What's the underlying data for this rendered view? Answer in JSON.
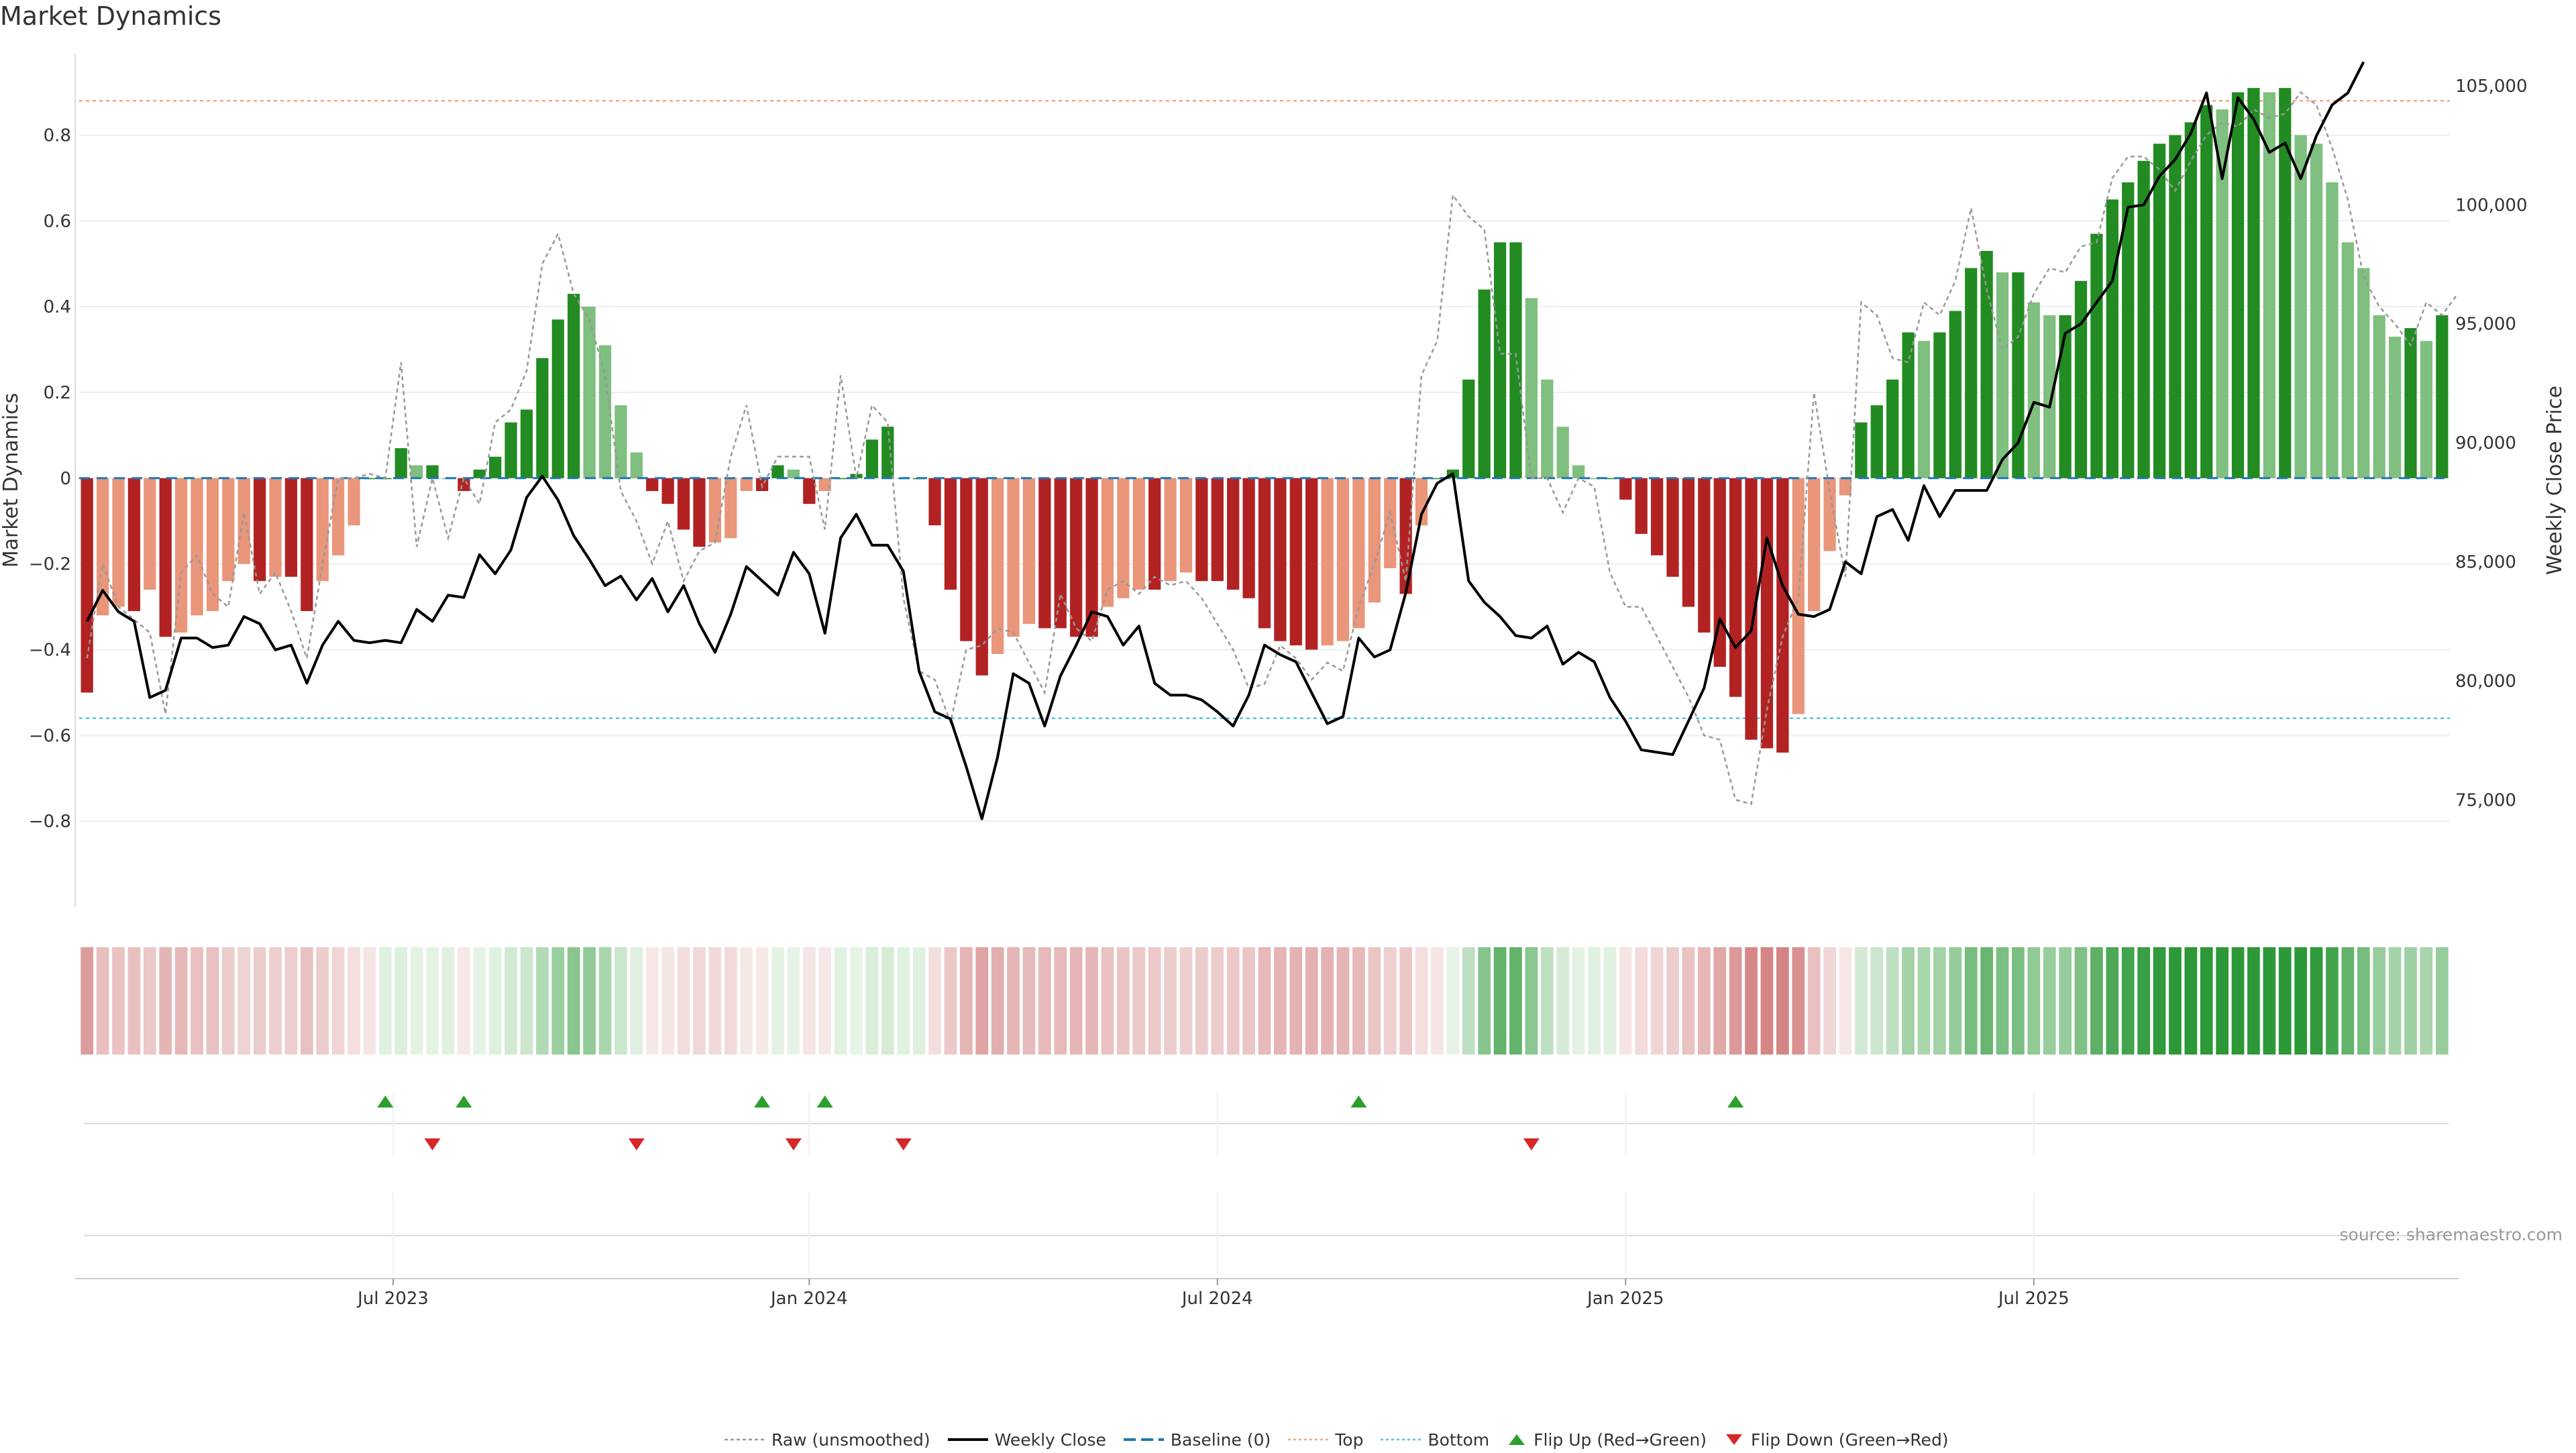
{
  "title": "Market Dynamics",
  "source_note": "source: sharemaestro.com",
  "colors": {
    "strong_green": "#228B22",
    "light_green": "#7FBF7F",
    "strong_red": "#B22222",
    "light_red": "#E9967A",
    "close_line": "#000000",
    "raw_line": "#999999",
    "baseline": "#1f77b4",
    "top": "#f4a582",
    "bottom": "#5bc0de",
    "flip_up": "#2ca02c",
    "flip_down": "#d62728"
  },
  "legend": {
    "raw": "Raw (unsmoothed)",
    "close": "Weekly Close",
    "baseline": "Baseline (0)",
    "top": "Top",
    "bottom": "Bottom",
    "flip_up": "Flip Up (Red→Green)",
    "flip_down": "Flip Down (Green→Red)"
  },
  "chart_data": {
    "type": "bar",
    "title": "Market Dynamics",
    "ylabel": "Market Dynamics",
    "y2label": "Weekly Close Price",
    "ylim": [
      -1.0,
      0.99
    ],
    "y2lim": [
      70500,
      106350
    ],
    "yticks": [
      0.8,
      0.6,
      0.4,
      0.2,
      0,
      -0.2,
      -0.4,
      -0.6,
      -0.8
    ],
    "ytick_labels": [
      "0.8",
      "0.6",
      "0.4",
      "0.2",
      "0",
      "−0.2",
      "−0.4",
      "−0.6",
      "−0.8"
    ],
    "y2ticks": [
      105000,
      100000,
      95000,
      90000,
      85000,
      80000,
      75000
    ],
    "y2tick_labels": [
      "105,000",
      "100,000",
      "95,000",
      "90,000",
      "85,000",
      "80,000",
      "75,000"
    ],
    "xtick_weeks": [
      20,
      46.5,
      72.5,
      98.5,
      124.5
    ],
    "xtick_labels": [
      "Jul 2023",
      "Jan 2024",
      "Jul 2024",
      "Jan 2025",
      "Jul 2025"
    ],
    "top_level": 0.88,
    "bottom_level": -0.56,
    "baseline": 0,
    "market_dynamics": [
      -0.5,
      -0.32,
      -0.3,
      -0.31,
      -0.26,
      -0.37,
      -0.36,
      -0.32,
      -0.31,
      -0.24,
      -0.2,
      -0.24,
      -0.23,
      -0.23,
      -0.31,
      -0.24,
      -0.18,
      -0.11,
      0,
      0,
      0.07,
      0.03,
      0.03,
      0,
      -0.03,
      0.02,
      0.05,
      0.13,
      0.16,
      0.28,
      0.37,
      0.43,
      0.4,
      0.31,
      0.17,
      0.06,
      -0.03,
      -0.06,
      -0.12,
      -0.16,
      -0.15,
      -0.14,
      -0.03,
      -0.03,
      0.03,
      0.02,
      -0.06,
      -0.03,
      0,
      0.01,
      0.09,
      0.12,
      0,
      0,
      -0.11,
      -0.26,
      -0.38,
      -0.46,
      -0.41,
      -0.37,
      -0.34,
      -0.35,
      -0.35,
      -0.37,
      -0.37,
      -0.3,
      -0.28,
      -0.26,
      -0.26,
      -0.24,
      -0.22,
      -0.24,
      -0.24,
      -0.26,
      -0.28,
      -0.35,
      -0.38,
      -0.39,
      -0.4,
      -0.39,
      -0.38,
      -0.35,
      -0.29,
      -0.21,
      -0.27,
      -0.11,
      0,
      0.02,
      0.23,
      0.44,
      0.55,
      0.55,
      0.42,
      0.23,
      0.12,
      0.03,
      0,
      0,
      -0.05,
      -0.13,
      -0.18,
      -0.23,
      -0.3,
      -0.36,
      -0.44,
      -0.51,
      -0.61,
      -0.63,
      -0.64,
      -0.55,
      -0.31,
      -0.17,
      -0.04,
      0.13,
      0.17,
      0.23,
      0.34,
      0.32,
      0.34,
      0.39,
      0.49,
      0.53,
      0.48,
      0.48,
      0.41,
      0.38,
      0.38,
      0.46,
      0.57,
      0.65,
      0.69,
      0.74,
      0.78,
      0.8,
      0.83,
      0.87,
      0.86,
      0.9,
      0.91,
      0.9,
      0.91,
      0.8,
      0.78,
      0.69,
      0.55,
      0.49,
      0.38,
      0.33,
      0.35,
      0.32,
      0.38
    ],
    "raw_unsmoothed": [
      -0.42,
      -0.2,
      -0.3,
      -0.33,
      -0.36,
      -0.55,
      -0.22,
      -0.18,
      -0.27,
      -0.3,
      -0.08,
      -0.27,
      -0.22,
      -0.31,
      -0.42,
      -0.2,
      0,
      0,
      0.01,
      0,
      0.27,
      -0.16,
      0,
      -0.14,
      0,
      -0.06,
      0.13,
      0.16,
      0.25,
      0.5,
      0.57,
      0.43,
      0.37,
      0.24,
      -0.03,
      -0.1,
      -0.2,
      -0.1,
      -0.24,
      -0.17,
      -0.15,
      0.05,
      0.17,
      -0.02,
      0.05,
      0.05,
      0.05,
      -0.12,
      0.24,
      0,
      0.17,
      0.13,
      -0.28,
      -0.45,
      -0.47,
      -0.57,
      -0.4,
      -0.39,
      -0.35,
      -0.36,
      -0.43,
      -0.5,
      -0.27,
      -0.35,
      -0.38,
      -0.26,
      -0.24,
      -0.27,
      -0.23,
      -0.25,
      -0.24,
      -0.28,
      -0.34,
      -0.4,
      -0.49,
      -0.48,
      -0.39,
      -0.42,
      -0.47,
      -0.43,
      -0.45,
      -0.3,
      -0.2,
      -0.08,
      -0.24,
      0.24,
      0.32,
      0.66,
      0.61,
      0.58,
      0.29,
      0.29,
      0,
      0,
      -0.08,
      0,
      -0.02,
      -0.22,
      -0.3,
      -0.3,
      -0.37,
      -0.44,
      -0.51,
      -0.6,
      -0.61,
      -0.75,
      -0.76,
      -0.54,
      -0.37,
      -0.28,
      0.2,
      -0.03,
      -0.23,
      0.41,
      0.38,
      0.28,
      0.27,
      0.41,
      0.38,
      0.46,
      0.63,
      0.44,
      0.3,
      0.33,
      0.43,
      0.49,
      0.48,
      0.54,
      0.55,
      0.7,
      0.75,
      0.75,
      0.72,
      0.67,
      0.74,
      0.8,
      0.83,
      0.82,
      0.86,
      0.84,
      0.85,
      0.9,
      0.87,
      0.77,
      0.65,
      0.47,
      0.4,
      0.36,
      0.31,
      0.41,
      0.38,
      0.43
    ],
    "weekly_close": [
      82500,
      83800,
      82900,
      82500,
      79300,
      79600,
      81800,
      81800,
      81400,
      81500,
      82700,
      82400,
      81300,
      81500,
      79900,
      81500,
      82500,
      81700,
      81600,
      81700,
      81600,
      83000,
      82500,
      83600,
      83500,
      85300,
      84500,
      85500,
      87700,
      88600,
      87600,
      86100,
      85100,
      84000,
      84400,
      83400,
      84300,
      82900,
      84000,
      82400,
      81200,
      82800,
      84800,
      84200,
      83600,
      85400,
      84500,
      82000,
      86000,
      87000,
      85700,
      85700,
      84600,
      80400,
      78700,
      78400,
      76400,
      74200,
      76800,
      80300,
      79900,
      78100,
      80200,
      81500,
      82900,
      82700,
      81500,
      82300,
      79900,
      79400,
      79400,
      79200,
      78700,
      78100,
      79400,
      81500,
      81100,
      80800,
      79500,
      78200,
      78500,
      81800,
      81000,
      81300,
      83700,
      87000,
      88300,
      88700,
      84200,
      83300,
      82700,
      81900,
      81800,
      82300,
      80700,
      81200,
      80800,
      79300,
      78300,
      77100,
      77000,
      76900,
      78300,
      79700,
      82600,
      81400,
      82100,
      86000,
      84000,
      82800,
      82700,
      83000,
      85000,
      84500,
      86900,
      87200,
      85900,
      88200,
      86900,
      88000,
      88000,
      88000,
      89300,
      90000,
      91700,
      91500,
      94600,
      95000,
      95900,
      96800,
      99900,
      100000,
      101200,
      101900,
      103000,
      104700,
      101100,
      104500,
      103600,
      102200,
      102600,
      101100,
      102900,
      104200,
      104700,
      106000
    ]
  },
  "heat_strip": {
    "values": [
      -0.5,
      -0.32,
      -0.3,
      -0.31,
      -0.26,
      -0.37,
      -0.36,
      -0.32,
      -0.31,
      -0.24,
      -0.2,
      -0.24,
      -0.23,
      -0.23,
      -0.31,
      -0.24,
      -0.18,
      -0.11,
      -0.05,
      0.05,
      0.07,
      0.03,
      0.03,
      0.05,
      -0.03,
      0.02,
      0.05,
      0.13,
      0.16,
      0.28,
      0.37,
      0.43,
      0.4,
      0.31,
      0.17,
      0.06,
      -0.03,
      -0.06,
      -0.12,
      -0.16,
      -0.15,
      -0.14,
      -0.03,
      -0.03,
      0.03,
      0.02,
      -0.06,
      -0.03,
      0.05,
      0.01,
      0.09,
      0.12,
      0.05,
      0.05,
      -0.11,
      -0.26,
      -0.38,
      -0.46,
      -0.41,
      -0.37,
      -0.34,
      -0.35,
      -0.35,
      -0.37,
      -0.37,
      -0.3,
      -0.28,
      -0.26,
      -0.26,
      -0.24,
      -0.22,
      -0.24,
      -0.24,
      -0.26,
      -0.28,
      -0.35,
      -0.38,
      -0.39,
      -0.4,
      -0.39,
      -0.38,
      -0.35,
      -0.29,
      -0.21,
      -0.27,
      -0.11,
      -0.05,
      0.02,
      0.23,
      0.44,
      0.55,
      0.55,
      0.42,
      0.23,
      0.12,
      0.03,
      0.05,
      0.05,
      -0.05,
      -0.13,
      -0.18,
      -0.23,
      -0.3,
      -0.36,
      -0.44,
      -0.51,
      -0.61,
      -0.63,
      -0.64,
      -0.55,
      -0.31,
      -0.17,
      -0.04,
      0.13,
      0.17,
      0.23,
      0.34,
      0.32,
      0.34,
      0.39,
      0.49,
      0.53,
      0.48,
      0.48,
      0.41,
      0.38,
      0.38,
      0.46,
      0.57,
      0.65,
      0.69,
      0.74,
      0.78,
      0.8,
      0.83,
      0.87,
      0.86,
      0.9,
      0.91,
      0.9,
      0.91,
      0.8,
      0.78,
      0.69,
      0.55,
      0.49,
      0.38,
      0.33,
      0.35,
      0.32,
      0.38
    ]
  },
  "flip_markers": {
    "up_weeks": [
      19,
      24,
      43,
      47,
      81,
      105
    ],
    "down_weeks": [
      22,
      35,
      45,
      52,
      92
    ]
  }
}
